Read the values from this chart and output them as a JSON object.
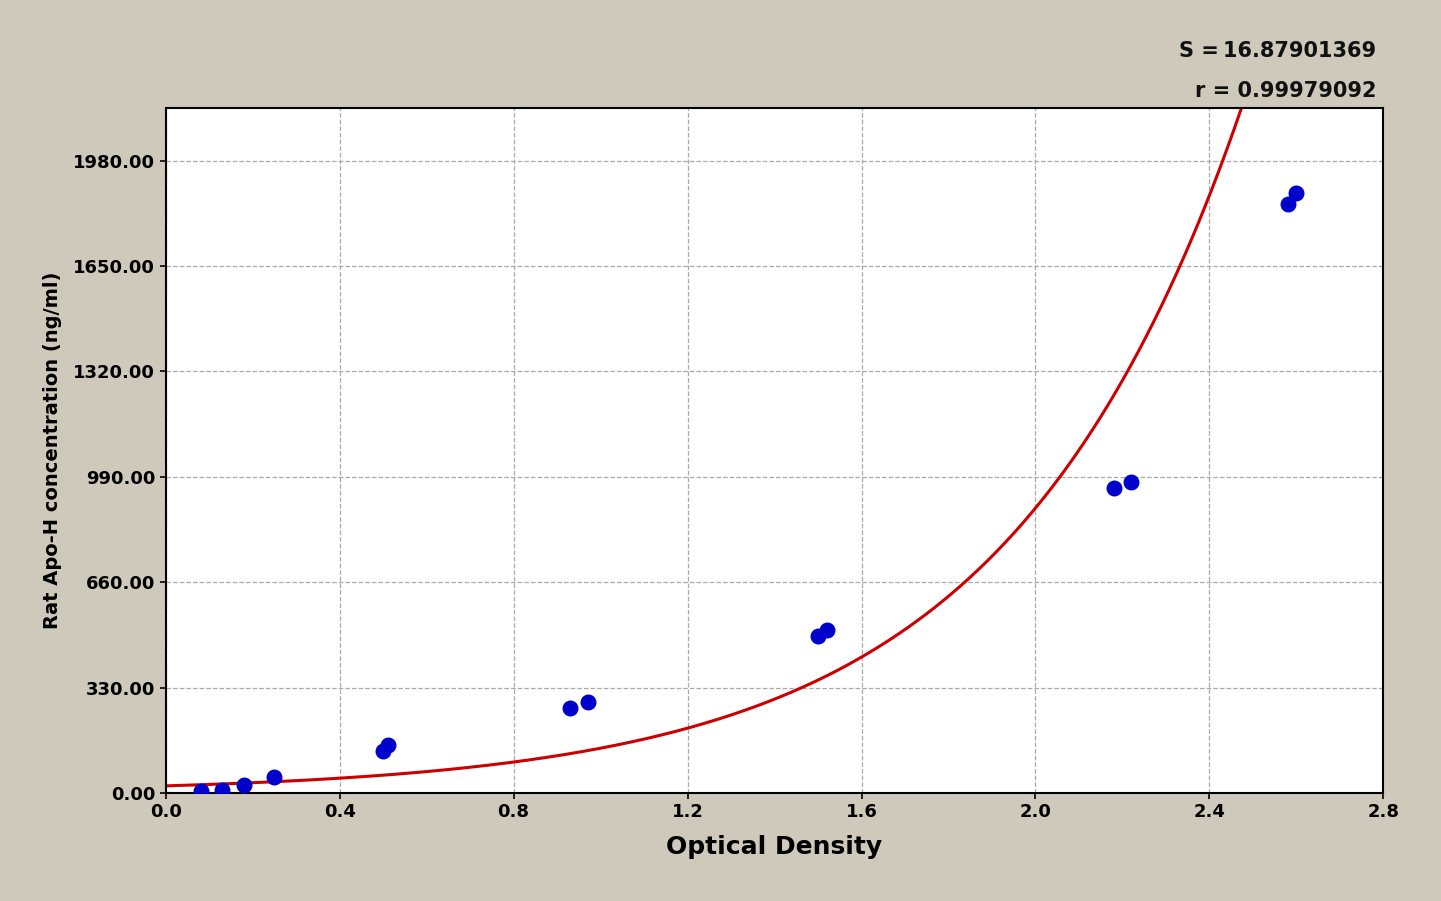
{
  "scatter_x": [
    0.08,
    0.13,
    0.18,
    0.25,
    0.5,
    0.51,
    0.93,
    0.97,
    1.5,
    1.52,
    2.18,
    2.22,
    2.58,
    2.6
  ],
  "scatter_y": [
    5,
    8,
    25,
    50,
    130,
    150,
    265,
    285,
    490,
    510,
    955,
    975,
    1845,
    1880
  ],
  "scatter_color": "#0000cc",
  "scatter_size": 110,
  "curve_color": "#cc0000",
  "curve_lw": 2.2,
  "S": 16.87901369,
  "r": 0.99979092,
  "xlim": [
    0.0,
    2.8
  ],
  "ylim": [
    0.0,
    2145.0
  ],
  "xticks": [
    0.0,
    0.4,
    0.8,
    1.2,
    1.6,
    2.0,
    2.4,
    2.8
  ],
  "xtick_labels": [
    "0.0",
    "0.4",
    "0.8",
    "1.2",
    "1.6",
    "2.0",
    "2.4",
    "2.8"
  ],
  "yticks": [
    0.0,
    330.0,
    660.0,
    990.0,
    1320.0,
    1650.0,
    1980.0
  ],
  "ytick_labels": [
    "0.00",
    "330.00",
    "660.00",
    "990.00",
    "1320.00",
    "1650.00",
    "1980.00"
  ],
  "xlabel": "Optical Density",
  "ylabel": "Rat Apo-H concentration (ng/ml)",
  "annotation_S": "S = 16.87901369",
  "annotation_r": "r = 0.99979092",
  "background_color": "#cec9bb",
  "plot_bg_color": "#ffffff",
  "grid_color": "#aaaaaa",
  "grid_style": "--",
  "xlabel_fontsize": 18,
  "ylabel_fontsize": 14,
  "tick_fontsize": 13,
  "annotation_fontsize": 15
}
